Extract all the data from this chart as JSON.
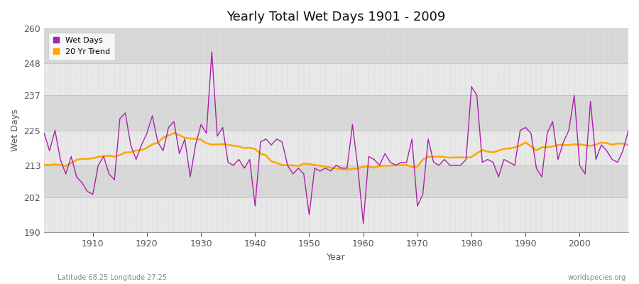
{
  "title": "Yearly Total Wet Days 1901 - 2009",
  "xlabel": "Year",
  "ylabel": "Wet Days",
  "bottom_left_label": "Latitude 68.25 Longitude 27.25",
  "bottom_right_label": "worldspecies.org",
  "ylim": [
    190,
    260
  ],
  "xlim": [
    1901,
    2009
  ],
  "yticks": [
    190,
    202,
    213,
    225,
    237,
    248,
    260
  ],
  "xticks": [
    1910,
    1920,
    1930,
    1940,
    1950,
    1960,
    1970,
    1980,
    1990,
    2000
  ],
  "wet_days_color": "#AA22AA",
  "trend_color": "#FFA500",
  "plot_bg_color": "#E8E8E8",
  "fig_bg_color": "#FFFFFF",
  "band_light": "#E8E8E8",
  "band_dark": "#D8D8D8",
  "grid_color": "#CCCCCC",
  "legend_labels": [
    "Wet Days",
    "20 Yr Trend"
  ],
  "years": [
    1901,
    1902,
    1903,
    1904,
    1905,
    1906,
    1907,
    1908,
    1909,
    1910,
    1911,
    1912,
    1913,
    1914,
    1915,
    1916,
    1917,
    1918,
    1919,
    1920,
    1921,
    1922,
    1923,
    1924,
    1925,
    1926,
    1927,
    1928,
    1929,
    1930,
    1931,
    1932,
    1933,
    1934,
    1935,
    1936,
    1937,
    1938,
    1939,
    1940,
    1941,
    1942,
    1943,
    1944,
    1945,
    1946,
    1947,
    1948,
    1949,
    1950,
    1951,
    1952,
    1953,
    1954,
    1955,
    1956,
    1957,
    1958,
    1959,
    1960,
    1961,
    1962,
    1963,
    1964,
    1965,
    1966,
    1967,
    1968,
    1969,
    1970,
    1971,
    1972,
    1973,
    1974,
    1975,
    1976,
    1977,
    1978,
    1979,
    1980,
    1981,
    1982,
    1983,
    1984,
    1985,
    1986,
    1987,
    1988,
    1989,
    1990,
    1991,
    1992,
    1993,
    1994,
    1995,
    1996,
    1997,
    1998,
    1999,
    2000,
    2001,
    2002,
    2003,
    2004,
    2005,
    2006,
    2007,
    2008,
    2009
  ],
  "wet_days": [
    224,
    218,
    225,
    215,
    210,
    216,
    209,
    207,
    204,
    203,
    213,
    216,
    210,
    208,
    229,
    231,
    220,
    215,
    220,
    224,
    230,
    221,
    218,
    226,
    228,
    217,
    222,
    209,
    220,
    227,
    224,
    252,
    223,
    226,
    214,
    213,
    215,
    212,
    215,
    199,
    221,
    222,
    220,
    222,
    221,
    213,
    210,
    212,
    210,
    196,
    212,
    211,
    212,
    211,
    213,
    212,
    212,
    227,
    212,
    193,
    216,
    215,
    213,
    217,
    214,
    213,
    214,
    214,
    222,
    199,
    203,
    222,
    214,
    213,
    215,
    213,
    213,
    213,
    215,
    240,
    237,
    214,
    215,
    214,
    209,
    215,
    214,
    213,
    225,
    226,
    224,
    212,
    209,
    224,
    228,
    215,
    221,
    225,
    237,
    213,
    210,
    235,
    215,
    220,
    218,
    215,
    214,
    218,
    225
  ]
}
